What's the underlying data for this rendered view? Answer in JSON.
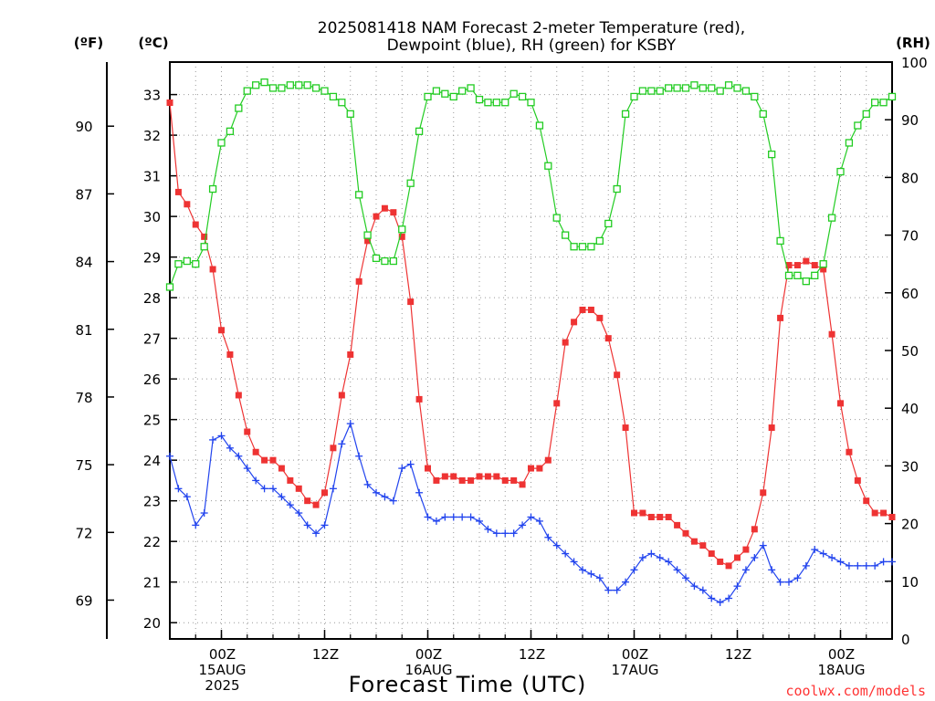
{
  "header": {
    "title_line1": "2025081418 NAM Forecast 2-meter Temperature (red),",
    "title_line2": "Dewpoint (blue), RH (green) for KSBY"
  },
  "units": {
    "f": "(ºF)",
    "c": "(ºC)",
    "rh": "(RH)"
  },
  "footer": {
    "credit": "coolwx.com/models"
  },
  "colors": {
    "temperature": "#ee3333",
    "dewpoint": "#2244ee",
    "rh": "#22cc22"
  },
  "chart_data": {
    "type": "line",
    "xlabel": "Forecast Time (UTC)",
    "x_unit": "forecast hour from 2025081418",
    "xlim": [
      0,
      84
    ],
    "x_ticks": [
      {
        "hour": 6,
        "lines": [
          "00Z",
          "15AUG",
          "2025"
        ]
      },
      {
        "hour": 18,
        "lines": [
          "12Z"
        ]
      },
      {
        "hour": 30,
        "lines": [
          "00Z",
          "16AUG"
        ]
      },
      {
        "hour": 42,
        "lines": [
          "12Z"
        ]
      },
      {
        "hour": 54,
        "lines": [
          "00Z",
          "17AUG"
        ]
      },
      {
        "hour": 66,
        "lines": [
          "12Z"
        ]
      },
      {
        "hour": 78,
        "lines": [
          "00Z",
          "18AUG"
        ]
      }
    ],
    "y_celsius": {
      "label": "(ºC)",
      "range": [
        19.6,
        33.8
      ],
      "ticks": [
        20,
        21,
        22,
        23,
        24,
        25,
        26,
        27,
        28,
        29,
        30,
        31,
        32,
        33
      ]
    },
    "y_fahrenheit": {
      "label": "(ºF)",
      "ticks": [
        69,
        72,
        75,
        78,
        81,
        84,
        87,
        90
      ]
    },
    "y_rh": {
      "label": "(RH)",
      "range": [
        0,
        100
      ],
      "ticks": [
        0,
        10,
        20,
        30,
        40,
        50,
        60,
        70,
        80,
        90,
        100
      ]
    },
    "grid": true,
    "series": [
      {
        "name": "Temperature",
        "axis": "celsius",
        "marker": "filled-square",
        "x": [
          0,
          1,
          2,
          3,
          4,
          5,
          6,
          7,
          8,
          9,
          10,
          11,
          12,
          13,
          14,
          15,
          16,
          17,
          18,
          19,
          20,
          21,
          22,
          23,
          24,
          25,
          26,
          27,
          28,
          29,
          30,
          31,
          32,
          33,
          34,
          35,
          36,
          37,
          38,
          39,
          40,
          41,
          42,
          43,
          44,
          45,
          46,
          47,
          48,
          49,
          50,
          51,
          52,
          53,
          54,
          55,
          56,
          57,
          58,
          59,
          60,
          61,
          62,
          63,
          64,
          65,
          66,
          67,
          68,
          69,
          70,
          71,
          72,
          73,
          74,
          75,
          76,
          77,
          78,
          79,
          80,
          81,
          82,
          83,
          84
        ],
        "values": [
          32.8,
          30.6,
          30.3,
          29.8,
          29.5,
          28.7,
          27.2,
          26.6,
          25.6,
          24.7,
          24.2,
          24.0,
          24.0,
          23.8,
          23.5,
          23.3,
          23.0,
          22.9,
          23.2,
          24.3,
          25.6,
          26.6,
          28.4,
          29.4,
          30.0,
          30.2,
          30.1,
          29.5,
          27.9,
          25.5,
          23.8,
          23.5,
          23.6,
          23.6,
          23.5,
          23.5,
          23.6,
          23.6,
          23.6,
          23.5,
          23.5,
          23.4,
          23.8,
          23.8,
          24.0,
          25.4,
          26.9,
          27.4,
          27.7,
          27.7,
          27.5,
          27.0,
          26.1,
          24.8,
          22.7,
          22.7,
          22.6,
          22.6,
          22.6,
          22.4,
          22.2,
          22.0,
          21.9,
          21.7,
          21.5,
          21.4,
          21.6,
          21.8,
          22.3,
          23.2,
          24.8,
          27.5,
          28.8,
          28.8,
          28.9,
          28.8,
          28.7,
          27.1,
          25.4,
          24.2,
          23.5,
          23.0,
          22.7,
          22.7,
          22.6
        ]
      },
      {
        "name": "Dewpoint",
        "axis": "celsius",
        "marker": "plus",
        "x": [
          0,
          1,
          2,
          3,
          4,
          5,
          6,
          7,
          8,
          9,
          10,
          11,
          12,
          13,
          14,
          15,
          16,
          17,
          18,
          19,
          20,
          21,
          22,
          23,
          24,
          25,
          26,
          27,
          28,
          29,
          30,
          31,
          32,
          33,
          34,
          35,
          36,
          37,
          38,
          39,
          40,
          41,
          42,
          43,
          44,
          45,
          46,
          47,
          48,
          49,
          50,
          51,
          52,
          53,
          54,
          55,
          56,
          57,
          58,
          59,
          60,
          61,
          62,
          63,
          64,
          65,
          66,
          67,
          68,
          69,
          70,
          71,
          72,
          73,
          74,
          75,
          76,
          77,
          78,
          79,
          80,
          81,
          82,
          83,
          84
        ],
        "values": [
          24.1,
          23.3,
          23.1,
          22.4,
          22.7,
          24.5,
          24.6,
          24.3,
          24.1,
          23.8,
          23.5,
          23.3,
          23.3,
          23.1,
          22.9,
          22.7,
          22.4,
          22.2,
          22.4,
          23.3,
          24.4,
          24.9,
          24.1,
          23.4,
          23.2,
          23.1,
          23.0,
          23.8,
          23.9,
          23.2,
          22.6,
          22.5,
          22.6,
          22.6,
          22.6,
          22.6,
          22.5,
          22.3,
          22.2,
          22.2,
          22.2,
          22.4,
          22.6,
          22.5,
          22.1,
          21.9,
          21.7,
          21.5,
          21.3,
          21.2,
          21.1,
          20.8,
          20.8,
          21.0,
          21.3,
          21.6,
          21.7,
          21.6,
          21.5,
          21.3,
          21.1,
          20.9,
          20.8,
          20.6,
          20.5,
          20.6,
          20.9,
          21.3,
          21.6,
          21.9,
          21.3,
          21.0,
          21.0,
          21.1,
          21.4,
          21.8,
          21.7,
          21.6,
          21.5,
          21.4,
          21.4,
          21.4,
          21.4,
          21.5,
          21.5
        ]
      },
      {
        "name": "RH",
        "axis": "rh",
        "marker": "open-square",
        "x": [
          0,
          1,
          2,
          3,
          4,
          5,
          6,
          7,
          8,
          9,
          10,
          11,
          12,
          13,
          14,
          15,
          16,
          17,
          18,
          19,
          20,
          21,
          22,
          23,
          24,
          25,
          26,
          27,
          28,
          29,
          30,
          31,
          32,
          33,
          34,
          35,
          36,
          37,
          38,
          39,
          40,
          41,
          42,
          43,
          44,
          45,
          46,
          47,
          48,
          49,
          50,
          51,
          52,
          53,
          54,
          55,
          56,
          57,
          58,
          59,
          60,
          61,
          62,
          63,
          64,
          65,
          66,
          67,
          68,
          69,
          70,
          71,
          72,
          73,
          74,
          75,
          76,
          77,
          78,
          79,
          80,
          81,
          82,
          83,
          84
        ],
        "values": [
          61,
          65,
          65.5,
          65,
          68,
          78,
          86,
          88,
          92,
          95,
          96,
          96.5,
          95.5,
          95.5,
          96,
          96,
          96,
          95.5,
          95,
          94,
          93,
          91,
          77,
          70,
          66,
          65.5,
          65.5,
          71,
          79,
          88,
          94,
          95,
          94.5,
          94,
          95,
          95.5,
          93.5,
          93,
          93,
          93,
          94.5,
          94,
          93,
          89,
          82,
          73,
          70,
          68,
          68,
          68,
          69,
          72,
          78,
          91,
          94,
          95,
          95,
          95,
          95.5,
          95.5,
          95.5,
          96,
          95.5,
          95.5,
          95,
          96,
          95.5,
          95,
          94,
          91,
          84,
          69,
          63,
          63,
          62,
          63,
          65,
          73,
          81,
          86,
          89,
          91,
          93,
          93,
          94
        ]
      }
    ]
  }
}
